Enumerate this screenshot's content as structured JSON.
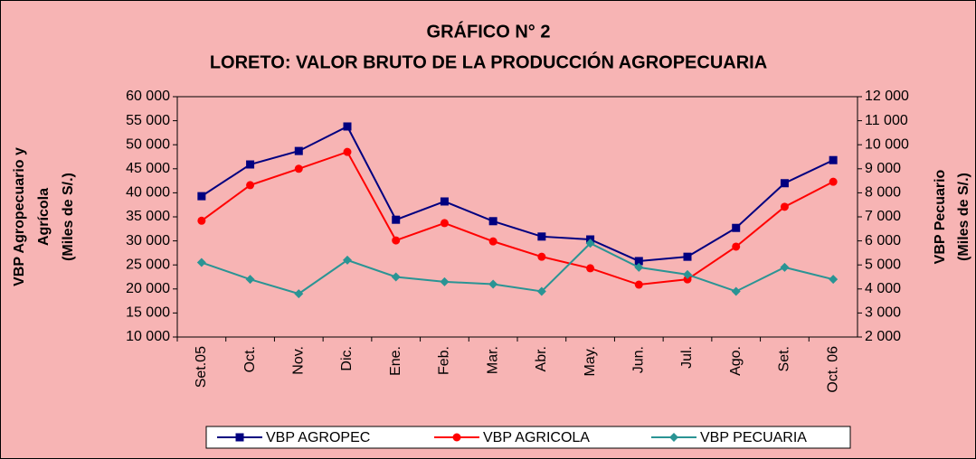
{
  "chart_data": {
    "type": "line",
    "title": "GRÁFICO N° 2",
    "subtitle": "LORETO: VALOR BRUTO DE LA PRODUCCIÓN AGROPECUARIA",
    "y_label": [
      "VBP Agropecuario y",
      "Agrícola",
      "(Miles de S/.)"
    ],
    "y2_label": [
      "VBP Pecuario",
      "(Miles de S/.)"
    ],
    "categories": [
      "Set.05",
      "Oct.",
      "Nov.",
      "Dic.",
      "Ene.",
      "Feb.",
      "Mar.",
      "Abr.",
      "May.",
      "Jun.",
      "Jul.",
      "Ago.",
      "Set.",
      "Oct. 06"
    ],
    "series": [
      {
        "name": "VBP AGROPEC",
        "color": "#000080",
        "marker": "square",
        "values": [
          39300,
          45900,
          48700,
          53800,
          34400,
          38200,
          34100,
          30900,
          30300,
          25800,
          26700,
          32700,
          42000,
          46800
        ]
      },
      {
        "name": "VBP AGRICOLA",
        "color": "#ff0000",
        "marker": "circle",
        "values": [
          34200,
          41600,
          45000,
          48500,
          30100,
          33700,
          29900,
          26700,
          24300,
          20900,
          22000,
          28800,
          37100,
          42300
        ]
      },
      {
        "name": "VBP PECUARIA",
        "color": "#2a9494",
        "marker": "diamond",
        "axis": "y2",
        "values": [
          5100,
          4400,
          3800,
          5200,
          4500,
          4300,
          4200,
          3900,
          5900,
          4900,
          4600,
          3900,
          4900,
          4400
        ]
      }
    ],
    "ylim": [
      10000,
      60000
    ],
    "yticks": [
      {
        "value": 10000,
        "label": "10 000"
      },
      {
        "value": 15000,
        "label": "15 000"
      },
      {
        "value": 20000,
        "label": "20 000"
      },
      {
        "value": 25000,
        "label": "25 000"
      },
      {
        "value": 30000,
        "label": "30 000"
      },
      {
        "value": 35000,
        "label": "35 000"
      },
      {
        "value": 40000,
        "label": "40 000"
      },
      {
        "value": 45000,
        "label": "45 000"
      },
      {
        "value": 50000,
        "label": "50 000"
      },
      {
        "value": 55000,
        "label": "55 000"
      },
      {
        "value": 60000,
        "label": "60 000"
      }
    ],
    "y2lim": [
      2000,
      12000
    ],
    "y2ticks": [
      {
        "value": 2000,
        "label": "2 000"
      },
      {
        "value": 3000,
        "label": "3 000"
      },
      {
        "value": 4000,
        "label": "4 000"
      },
      {
        "value": 5000,
        "label": "5 000"
      },
      {
        "value": 6000,
        "label": "6 000"
      },
      {
        "value": 7000,
        "label": "7 000"
      },
      {
        "value": 8000,
        "label": "8 000"
      },
      {
        "value": 9000,
        "label": "9 000"
      },
      {
        "value": 10000,
        "label": "10 000"
      },
      {
        "value": 11000,
        "label": "11 000"
      },
      {
        "value": 12000,
        "label": "12 000"
      }
    ],
    "legend": "bottom"
  }
}
